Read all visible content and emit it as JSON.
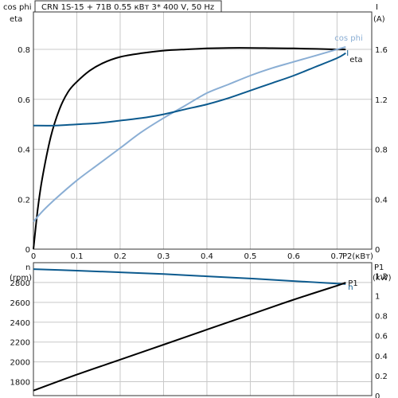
{
  "header": {
    "title": "CRN 1S-15 + 71B    0.55 кВт   3* 400 V, 50 Hz"
  },
  "colors": {
    "eta": "#000000",
    "cosphi": "#8aaed4",
    "current": "#0c5a8e",
    "speed": "#0c5a8e",
    "p1": "#000000"
  },
  "chart_data": [
    {
      "type": "line",
      "xlabel": "P2(кВт)",
      "xlim": [
        0,
        0.78
      ],
      "xticks": [
        "0",
        "0.1",
        "0.2",
        "0.3",
        "0.4",
        "0.5",
        "0.6",
        "0.7"
      ],
      "left_axis": {
        "label_line1": "cos phi",
        "label_line2": "eta",
        "lim": [
          0,
          0.95
        ],
        "ticks": [
          "0",
          "0.2",
          "0.4",
          "0.6",
          "0.8"
        ]
      },
      "right_axis": {
        "label_line1": "I",
        "label_line2": "(A)",
        "lim": [
          0,
          1.9
        ],
        "ticks": [
          "0",
          "0.4",
          "0.8",
          "1.2",
          "1.6"
        ]
      },
      "series": [
        {
          "name": "eta",
          "axis": "left",
          "x": [
            0,
            0.01,
            0.02,
            0.04,
            0.06,
            0.08,
            0.1,
            0.13,
            0.16,
            0.2,
            0.25,
            0.3,
            0.35,
            0.4,
            0.45,
            0.5,
            0.55,
            0.6,
            0.65,
            0.7,
            0.72
          ],
          "values": [
            0,
            0.16,
            0.28,
            0.45,
            0.56,
            0.63,
            0.67,
            0.715,
            0.745,
            0.77,
            0.785,
            0.795,
            0.8,
            0.804,
            0.806,
            0.806,
            0.805,
            0.804,
            0.802,
            0.8,
            0.8
          ]
        },
        {
          "name": "cos phi",
          "axis": "left",
          "x": [
            0,
            0.02,
            0.05,
            0.1,
            0.15,
            0.2,
            0.25,
            0.3,
            0.35,
            0.4,
            0.45,
            0.5,
            0.55,
            0.6,
            0.65,
            0.7,
            0.72
          ],
          "values": [
            0.11,
            0.15,
            0.2,
            0.275,
            0.34,
            0.405,
            0.47,
            0.525,
            0.575,
            0.625,
            0.66,
            0.695,
            0.725,
            0.75,
            0.775,
            0.8,
            0.81
          ]
        },
        {
          "name": "I",
          "axis": "right",
          "x": [
            0,
            0.05,
            0.1,
            0.15,
            0.2,
            0.25,
            0.3,
            0.35,
            0.4,
            0.45,
            0.5,
            0.55,
            0.6,
            0.65,
            0.7,
            0.72
          ],
          "values": [
            0.99,
            0.99,
            1.0,
            1.01,
            1.03,
            1.05,
            1.08,
            1.12,
            1.16,
            1.21,
            1.27,
            1.33,
            1.39,
            1.46,
            1.53,
            1.57
          ]
        }
      ]
    },
    {
      "type": "line",
      "xlim": [
        0,
        0.78
      ],
      "left_axis": {
        "label_line1": "n",
        "label_line2": "(rpm)",
        "lim": [
          1660,
          3000
        ],
        "ticks": [
          "1800",
          "2000",
          "2200",
          "2400",
          "2600",
          "2800"
        ]
      },
      "right_axis": {
        "label_line1": "P1",
        "label_line2": "(kW)",
        "lim": [
          0,
          1.33
        ],
        "ticks": [
          "0",
          "0.2",
          "0.4",
          "0.6",
          "0.8",
          "1",
          "1.2"
        ]
      },
      "series": [
        {
          "name": "n",
          "axis": "left",
          "x": [
            0,
            0.1,
            0.2,
            0.3,
            0.4,
            0.5,
            0.6,
            0.7,
            0.72
          ],
          "values": [
            2935,
            2920,
            2903,
            2885,
            2863,
            2840,
            2815,
            2790,
            2785
          ]
        },
        {
          "name": "P1",
          "axis": "right",
          "x": [
            0,
            0.1,
            0.2,
            0.3,
            0.4,
            0.5,
            0.6,
            0.7,
            0.72
          ],
          "values": [
            0.05,
            0.21,
            0.36,
            0.51,
            0.66,
            0.81,
            0.96,
            1.1,
            1.13
          ]
        }
      ]
    }
  ]
}
